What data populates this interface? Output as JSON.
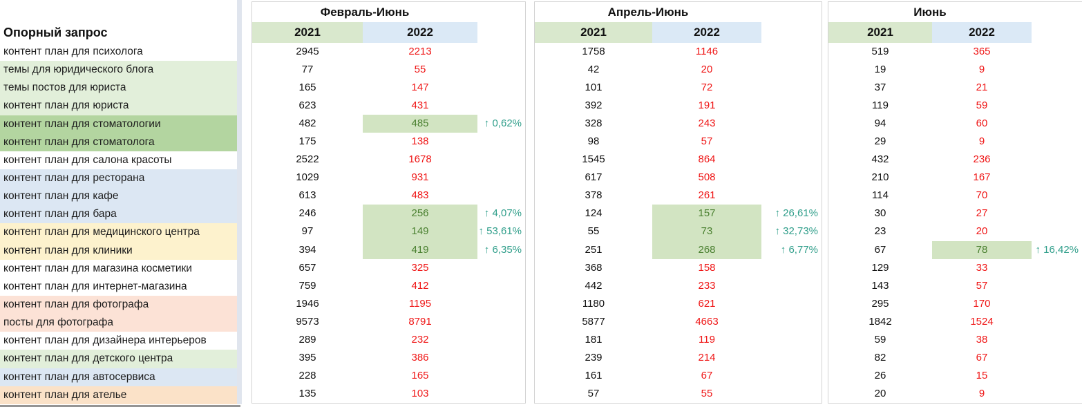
{
  "left": {
    "header": "Опорный запрос",
    "rows": [
      {
        "label": "контент план для психолога",
        "color": "white"
      },
      {
        "label": "темы для юридического блога",
        "color": "lgreen"
      },
      {
        "label": "темы постов для юриста",
        "color": "lgreen"
      },
      {
        "label": "контент план для юриста",
        "color": "lgreen"
      },
      {
        "label": "контент план для стоматологии",
        "color": "green"
      },
      {
        "label": "контент план для стоматолога",
        "color": "green"
      },
      {
        "label": "контент план для салона красоты",
        "color": "white"
      },
      {
        "label": "контент план для ресторана",
        "color": "lblue"
      },
      {
        "label": "контент план для кафе",
        "color": "lblue"
      },
      {
        "label": "контент план для бара",
        "color": "lblue"
      },
      {
        "label": "контент план для медицинского центра",
        "color": "yellow"
      },
      {
        "label": "контент план для клиники",
        "color": "yellow"
      },
      {
        "label": "контент план для магазина косметики",
        "color": "white"
      },
      {
        "label": "контент план для интернет-магазина",
        "color": "white"
      },
      {
        "label": "контент план для фотографа",
        "color": "pink"
      },
      {
        "label": "посты для фотографа",
        "color": "pink"
      },
      {
        "label": "контент план для дизайнера интерьеров",
        "color": "white"
      },
      {
        "label": "контент план для детского центра",
        "color": "lgreen"
      },
      {
        "label": "контент план для автосервиса",
        "color": "lblue"
      },
      {
        "label": "контент план для ателье",
        "color": "orange"
      }
    ]
  },
  "blocks": [
    {
      "title": "Февраль-Июнь",
      "col2021": "2021",
      "col2022": "2022",
      "rows": [
        {
          "v2021": "2945",
          "v2022": "2213",
          "trend": "down",
          "pct": ""
        },
        {
          "v2021": "77",
          "v2022": "55",
          "trend": "down",
          "pct": ""
        },
        {
          "v2021": "165",
          "v2022": "147",
          "trend": "down",
          "pct": ""
        },
        {
          "v2021": "623",
          "v2022": "431",
          "trend": "down",
          "pct": ""
        },
        {
          "v2021": "482",
          "v2022": "485",
          "trend": "up",
          "pct": "↑ 0,62%"
        },
        {
          "v2021": "175",
          "v2022": "138",
          "trend": "down",
          "pct": ""
        },
        {
          "v2021": "2522",
          "v2022": "1678",
          "trend": "down",
          "pct": ""
        },
        {
          "v2021": "1029",
          "v2022": "931",
          "trend": "down",
          "pct": ""
        },
        {
          "v2021": "613",
          "v2022": "483",
          "trend": "down",
          "pct": ""
        },
        {
          "v2021": "246",
          "v2022": "256",
          "trend": "up",
          "pct": "↑ 4,07%"
        },
        {
          "v2021": "97",
          "v2022": "149",
          "trend": "up",
          "pct": "↑ 53,61%"
        },
        {
          "v2021": "394",
          "v2022": "419",
          "trend": "up",
          "pct": "↑ 6,35%"
        },
        {
          "v2021": "657",
          "v2022": "325",
          "trend": "down",
          "pct": ""
        },
        {
          "v2021": "759",
          "v2022": "412",
          "trend": "down",
          "pct": ""
        },
        {
          "v2021": "1946",
          "v2022": "1195",
          "trend": "down",
          "pct": ""
        },
        {
          "v2021": "9573",
          "v2022": "8791",
          "trend": "down",
          "pct": ""
        },
        {
          "v2021": "289",
          "v2022": "232",
          "trend": "down",
          "pct": ""
        },
        {
          "v2021": "395",
          "v2022": "386",
          "trend": "down",
          "pct": ""
        },
        {
          "v2021": "228",
          "v2022": "165",
          "trend": "down",
          "pct": ""
        },
        {
          "v2021": "135",
          "v2022": "103",
          "trend": "down",
          "pct": ""
        }
      ]
    },
    {
      "title": "Апрель-Июнь",
      "col2021": "2021",
      "col2022": "2022",
      "rows": [
        {
          "v2021": "1758",
          "v2022": "1146",
          "trend": "down",
          "pct": ""
        },
        {
          "v2021": "42",
          "v2022": "20",
          "trend": "down",
          "pct": ""
        },
        {
          "v2021": "101",
          "v2022": "72",
          "trend": "down",
          "pct": ""
        },
        {
          "v2021": "392",
          "v2022": "191",
          "trend": "down",
          "pct": ""
        },
        {
          "v2021": "328",
          "v2022": "243",
          "trend": "down",
          "pct": ""
        },
        {
          "v2021": "98",
          "v2022": "57",
          "trend": "down",
          "pct": ""
        },
        {
          "v2021": "1545",
          "v2022": "864",
          "trend": "down",
          "pct": ""
        },
        {
          "v2021": "617",
          "v2022": "508",
          "trend": "down",
          "pct": ""
        },
        {
          "v2021": "378",
          "v2022": "261",
          "trend": "down",
          "pct": ""
        },
        {
          "v2021": "124",
          "v2022": "157",
          "trend": "up",
          "pct": "↑ 26,61%"
        },
        {
          "v2021": "55",
          "v2022": "73",
          "trend": "up",
          "pct": "↑ 32,73%"
        },
        {
          "v2021": "251",
          "v2022": "268",
          "trend": "up",
          "pct": "↑ 6,77%"
        },
        {
          "v2021": "368",
          "v2022": "158",
          "trend": "down",
          "pct": ""
        },
        {
          "v2021": "442",
          "v2022": "233",
          "trend": "down",
          "pct": ""
        },
        {
          "v2021": "1180",
          "v2022": "621",
          "trend": "down",
          "pct": ""
        },
        {
          "v2021": "5877",
          "v2022": "4663",
          "trend": "down",
          "pct": ""
        },
        {
          "v2021": "181",
          "v2022": "119",
          "trend": "down",
          "pct": ""
        },
        {
          "v2021": "239",
          "v2022": "214",
          "trend": "down",
          "pct": ""
        },
        {
          "v2021": "161",
          "v2022": "67",
          "trend": "down",
          "pct": ""
        },
        {
          "v2021": "57",
          "v2022": "55",
          "trend": "down",
          "pct": ""
        }
      ]
    },
    {
      "title": "Июнь",
      "col2021": "2021",
      "col2022": "2022",
      "rows": [
        {
          "v2021": "519",
          "v2022": "365",
          "trend": "down",
          "pct": ""
        },
        {
          "v2021": "19",
          "v2022": "9",
          "trend": "down",
          "pct": ""
        },
        {
          "v2021": "37",
          "v2022": "21",
          "trend": "down",
          "pct": ""
        },
        {
          "v2021": "119",
          "v2022": "59",
          "trend": "down",
          "pct": ""
        },
        {
          "v2021": "94",
          "v2022": "60",
          "trend": "down",
          "pct": ""
        },
        {
          "v2021": "29",
          "v2022": "9",
          "trend": "down",
          "pct": ""
        },
        {
          "v2021": "432",
          "v2022": "236",
          "trend": "down",
          "pct": ""
        },
        {
          "v2021": "210",
          "v2022": "167",
          "trend": "down",
          "pct": ""
        },
        {
          "v2021": "114",
          "v2022": "70",
          "trend": "down",
          "pct": ""
        },
        {
          "v2021": "30",
          "v2022": "27",
          "trend": "down",
          "pct": ""
        },
        {
          "v2021": "23",
          "v2022": "20",
          "trend": "down",
          "pct": ""
        },
        {
          "v2021": "67",
          "v2022": "78",
          "trend": "up",
          "pct": "↑ 16,42%"
        },
        {
          "v2021": "129",
          "v2022": "33",
          "trend": "down",
          "pct": ""
        },
        {
          "v2021": "143",
          "v2022": "57",
          "trend": "down",
          "pct": ""
        },
        {
          "v2021": "295",
          "v2022": "170",
          "trend": "down",
          "pct": ""
        },
        {
          "v2021": "1842",
          "v2022": "1524",
          "trend": "down",
          "pct": ""
        },
        {
          "v2021": "59",
          "v2022": "38",
          "trend": "down",
          "pct": ""
        },
        {
          "v2021": "82",
          "v2022": "67",
          "trend": "down",
          "pct": ""
        },
        {
          "v2021": "26",
          "v2022": "15",
          "trend": "down",
          "pct": ""
        },
        {
          "v2021": "20",
          "v2022": "9",
          "trend": "down",
          "pct": ""
        }
      ]
    }
  ],
  "colors": {
    "row_light_green": "#e2efda",
    "row_green": "#b3d5a0",
    "row_light_blue": "#dce7f3",
    "row_yellow": "#fdf2cd",
    "row_pink": "#fce2d6",
    "row_orange": "#fbe2c8",
    "header_2021_bg": "#d9e8cd",
    "header_2022_bg": "#dbe9f6",
    "increase_cell_bg": "#d2e4c2",
    "increase_text": "#4a8030",
    "decrease_text": "#ef1515",
    "percent_text": "#2f9e8a",
    "block_border": "#d2d2d2"
  }
}
